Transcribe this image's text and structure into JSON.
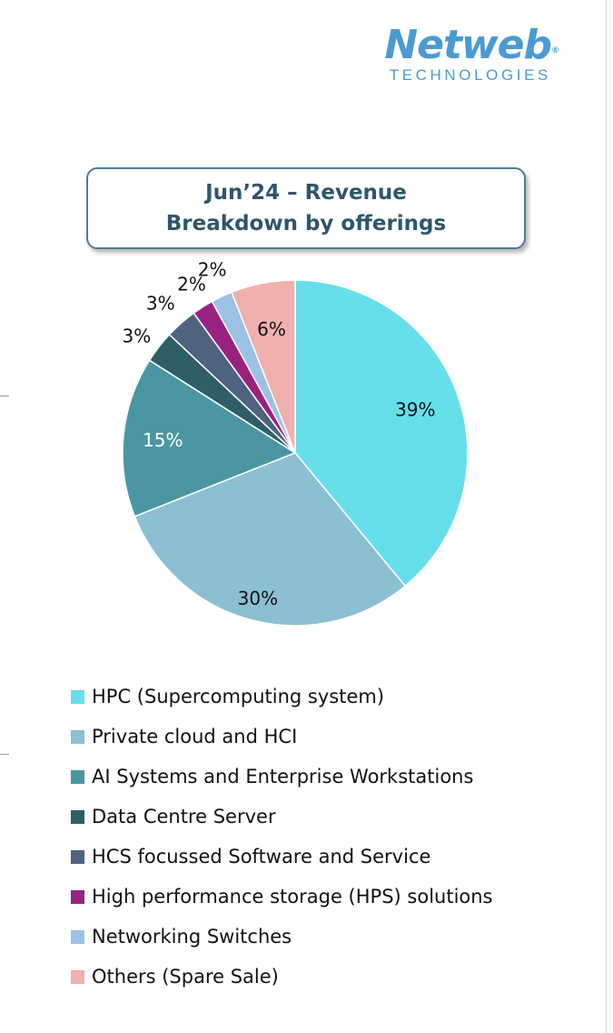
{
  "logo": {
    "name": "Netweb",
    "mark": "®",
    "tagline": "TECHNOLOGIES"
  },
  "title": "Jun’24 – Revenue\nBreakdown by offerings",
  "chart_data": {
    "type": "pie",
    "title": "Jun’24 – Revenue Breakdown by offerings",
    "legend": "bottom",
    "slices": [
      {
        "label": "HPC (Supercomputing system)",
        "value": 39,
        "display": "39%",
        "color": "#66dfea"
      },
      {
        "label": "Private cloud and HCI",
        "value": 30,
        "display": "30%",
        "color": "#8bbfd2"
      },
      {
        "label": "AI Systems and Enterprise Workstations",
        "value": 15,
        "display": "15%",
        "color": "#4a97a3"
      },
      {
        "label": "Data Centre Server",
        "value": 3,
        "display": "3%",
        "color": "#2e5e66"
      },
      {
        "label": "HCS focussed Software and Service",
        "value": 3,
        "display": "3%",
        "color": "#4f6381"
      },
      {
        "label": "High performance storage (HPS) solutions",
        "value": 2,
        "display": "2%",
        "color": "#98237f"
      },
      {
        "label": "Networking Switches",
        "value": 2,
        "display": "2%",
        "color": "#9cc2e6"
      },
      {
        "label": "Others (Spare Sale)",
        "value": 6,
        "display": "6%",
        "color": "#f0b0ae"
      }
    ]
  }
}
